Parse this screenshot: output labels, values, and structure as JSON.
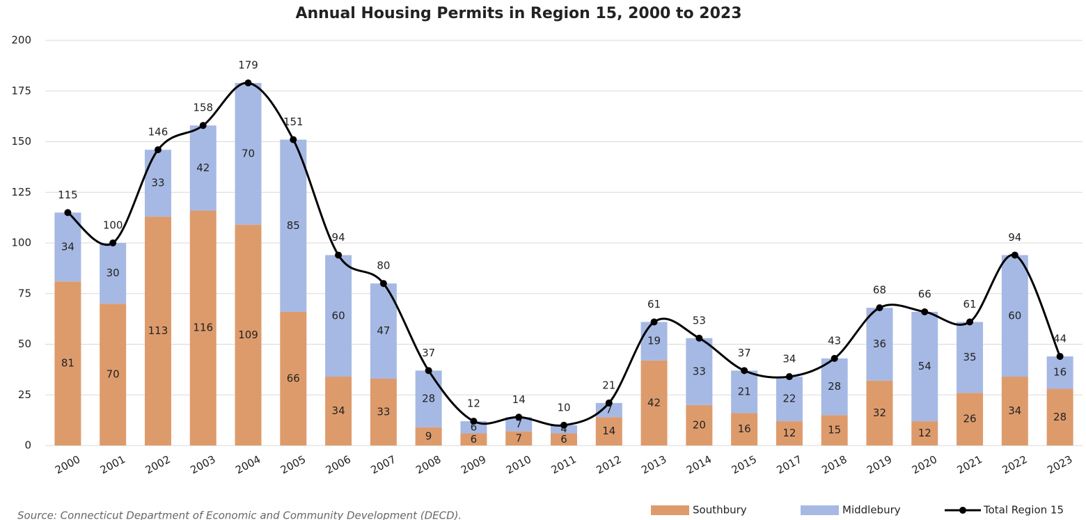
{
  "chart_data": {
    "type": "bar",
    "stacked": true,
    "title": "Annual Housing Permits in Region 15, 2000 to 2023",
    "source": "Source: Connecticut Department of Economic and Community Development (DECD).",
    "categories": [
      "2000",
      "2001",
      "2002",
      "2003",
      "2004",
      "2005",
      "2006",
      "2007",
      "2008",
      "2009",
      "2010",
      "2011",
      "2012",
      "2013",
      "2014",
      "2015",
      "2017",
      "2018",
      "2019",
      "2020",
      "2021",
      "2022",
      "2023"
    ],
    "series": [
      {
        "name": "Southbury",
        "type": "bar",
        "color": "#dd9b6c",
        "values": [
          81,
          70,
          113,
          116,
          109,
          66,
          34,
          33,
          9,
          6,
          7,
          6,
          14,
          42,
          20,
          16,
          12,
          15,
          32,
          12,
          26,
          34,
          28
        ]
      },
      {
        "name": "Middlebury",
        "type": "bar",
        "color": "#a6b9e4",
        "values": [
          34,
          30,
          33,
          42,
          70,
          85,
          60,
          47,
          28,
          6,
          7,
          4,
          7,
          19,
          33,
          21,
          22,
          28,
          36,
          54,
          35,
          60,
          16
        ]
      },
      {
        "name": "Total Region 15",
        "type": "line",
        "color": "#000000",
        "values": [
          115,
          100,
          146,
          158,
          179,
          151,
          94,
          80,
          37,
          12,
          14,
          10,
          21,
          61,
          53,
          37,
          34,
          43,
          68,
          66,
          61,
          94,
          44
        ]
      }
    ],
    "ylim": [
      0,
      200
    ],
    "yticks": [
      0,
      25,
      50,
      75,
      100,
      125,
      150,
      175,
      200
    ],
    "grid": true,
    "legend": "bottom",
    "data_labels": true
  }
}
